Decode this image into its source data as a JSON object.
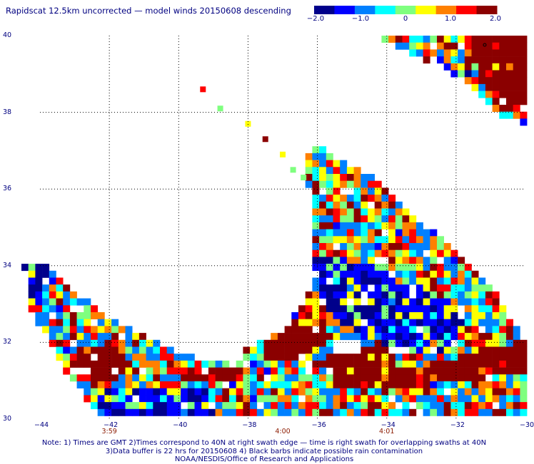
{
  "title": "Rapidscat 12.5km uncorrected — model winds 20150608 descending",
  "colorbar": {
    "ticks": [
      "−2.0",
      "−1.0",
      "0",
      "1.0",
      "2.0"
    ],
    "tick_values": [
      -2.0,
      -1.0,
      0,
      1.0,
      2.0
    ],
    "range": [
      -2.0,
      2.0
    ],
    "colors": [
      "#00008b",
      "#0000ff",
      "#0080ff",
      "#00ffff",
      "#7fff7f",
      "#ffff00",
      "#ff8000",
      "#ff0000",
      "#8b0000"
    ]
  },
  "chart_data": {
    "type": "heatmap",
    "title": "Rapidscat 12.5km uncorrected — model winds 20150608 descending",
    "x_ticks": [
      "−44",
      "−42",
      "−40",
      "−38",
      "−36",
      "−34",
      "−32",
      "−30"
    ],
    "y_ticks": [
      "30",
      "32",
      "34",
      "36",
      "38",
      "40"
    ],
    "xlim": [
      -44.5,
      -30
    ],
    "ylim": [
      30,
      40
    ],
    "grid": true,
    "time_labels": [
      {
        "text": "3:59",
        "lon": -42
      },
      {
        "text": "4:00",
        "lon": -37
      },
      {
        "text": "4:01",
        "lon": -34
      }
    ],
    "isolated_cells": [
      {
        "lon": -39.3,
        "lat": 38.6,
        "value": 1.4
      },
      {
        "lon": -38.8,
        "lat": 38.1,
        "value": -0.2
      },
      {
        "lon": -38.0,
        "lat": 37.7,
        "value": 0.5
      },
      {
        "lon": -37.5,
        "lat": 37.3,
        "value": 1.8
      },
      {
        "lon": -37.0,
        "lat": 36.9,
        "value": 0.3
      },
      {
        "lon": -36.7,
        "lat": 36.5,
        "value": 0.2
      },
      {
        "lon": -36.4,
        "lat": 36.3,
        "value": 0.1
      }
    ]
  },
  "notes": [
    "Note: 1) Times are GMT 2)Times correspond to 40N at right swath edge — time is right swath for overlapping swaths at 40N",
    "3)Data buffer is 22 hrs for 20150608 4) Black barbs indicate possible rain contamination",
    "NOAA/NESDIS/Office of Research and Applications"
  ]
}
